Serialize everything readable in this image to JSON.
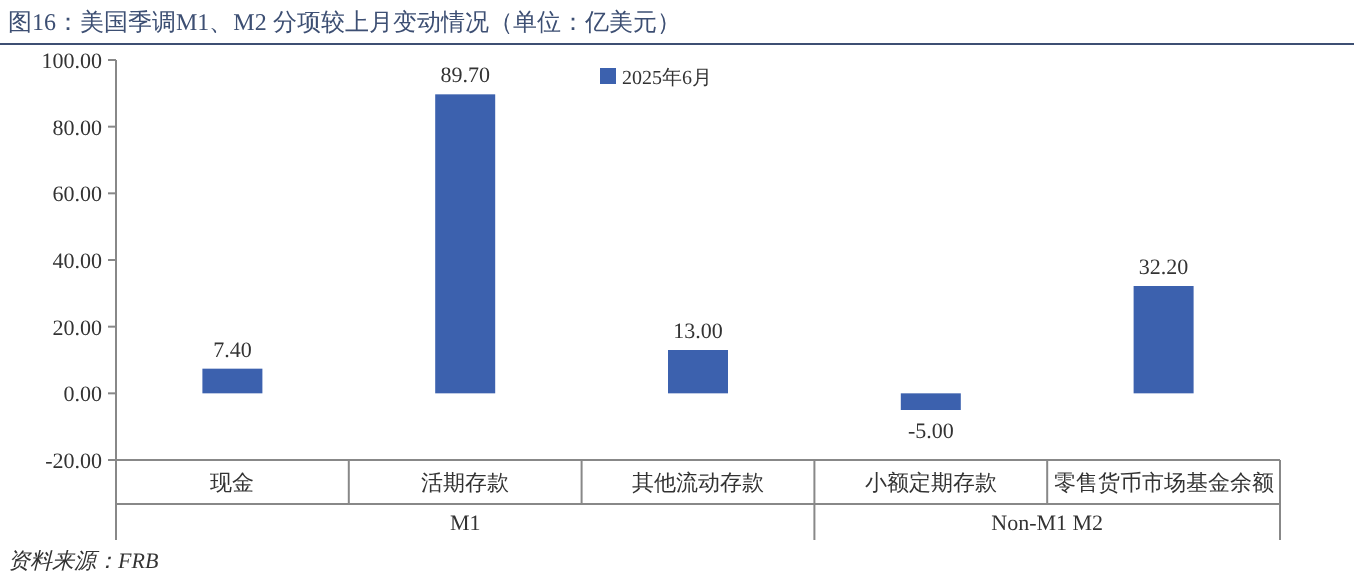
{
  "chart_data": {
    "type": "bar",
    "title": "图16：美国季调M1、M2 分项较上月变动情况（单位：亿美元）",
    "categories": [
      "现金",
      "活期存款",
      "其他流动存款",
      "小额定期存款",
      "零售货币市场基金余额"
    ],
    "series": [
      {
        "name": "2025年6月",
        "color": "#3c61ae",
        "values": [
          7.4,
          89.7,
          13.0,
          -5.0,
          32.2
        ],
        "value_labels": [
          "7.40",
          "89.70",
          "13.00",
          "-5.00",
          "32.20"
        ]
      }
    ],
    "ylim": [
      -20,
      100
    ],
    "yticks": [
      {
        "value": -20,
        "label": "-20.00"
      },
      {
        "value": 0,
        "label": "0.00"
      },
      {
        "value": 20,
        "label": "20.00"
      },
      {
        "value": 40,
        "label": "40.00"
      },
      {
        "value": 60,
        "label": "60.00"
      },
      {
        "value": 80,
        "label": "80.00"
      },
      {
        "value": 100,
        "label": "100.00"
      }
    ],
    "legend": "top",
    "grid": false,
    "annotations": [
      "M1",
      "Non-M1 M2",
      "资料来源：FRB"
    ]
  }
}
